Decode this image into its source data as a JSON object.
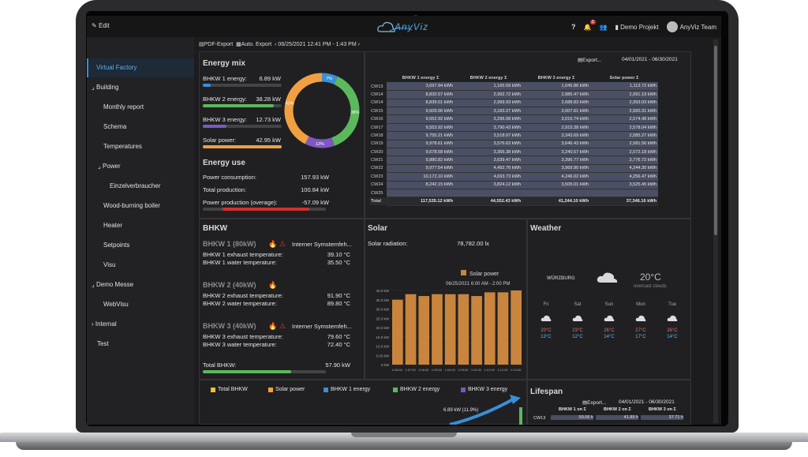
{
  "topbar": {
    "edit_label": "Edit",
    "logo": "AnyViz",
    "help": "?",
    "notif_count": "2",
    "project": "Demo Projekt",
    "user": "AnyViz Team"
  },
  "sidebar": {
    "items": [
      {
        "label": "Virtual Factory",
        "active": true
      },
      {
        "label": "Building"
      },
      {
        "label": "Monthly report"
      },
      {
        "label": "Schema"
      },
      {
        "label": "Temperatures"
      },
      {
        "label": "Power"
      },
      {
        "label": "Einzelverbraucher"
      },
      {
        "label": "Wood-burning boiler"
      },
      {
        "label": "Heater"
      },
      {
        "label": "Setpoints"
      },
      {
        "label": "Visu"
      },
      {
        "label": "Demo Messe"
      },
      {
        "label": "WebVisu"
      },
      {
        "label": "Internal"
      },
      {
        "label": "Test"
      }
    ]
  },
  "toolbar": {
    "pdf": "PDF-Export",
    "auto": "Auto. Export",
    "range": "06/25/2021 12:41 PM - 1:43 PM"
  },
  "energy_mix": {
    "title": "Energy mix",
    "items": [
      {
        "label": "BHKW 1 energy:",
        "value": "6.89 kW",
        "color": "#3a8fd8",
        "fill": 0.1
      },
      {
        "label": "BHKW 2 energy:",
        "value": "38.28 kW",
        "color": "#5cb85c",
        "fill": 0.9
      },
      {
        "label": "BHKW 3 energy:",
        "value": "12.73 kW",
        "color": "#7e57c2",
        "fill": 0.3
      },
      {
        "label": "Solar power:",
        "value": "42.95 kW",
        "color": "#f0a040",
        "fill": 1.0
      }
    ],
    "donut": [
      {
        "label": "7%",
        "value": 7,
        "color": "#3a8fd8"
      },
      {
        "label": "38%",
        "value": 38,
        "color": "#5cb85c"
      },
      {
        "label": "13%",
        "value": 13,
        "color": "#7e57c2"
      },
      {
        "label": "43%",
        "value": 43,
        "color": "#f0a040"
      }
    ]
  },
  "energy_use": {
    "title": "Energy use",
    "rows": [
      {
        "label": "Power consumption:",
        "value": "157.93 kW"
      },
      {
        "label": "Total production:",
        "value": "100.84 kW"
      },
      {
        "label": "Power production (overage):",
        "value": "-57.09 kW"
      }
    ]
  },
  "energy_table": {
    "export": "Export...",
    "range": "04/01/2021 - 06/30/2021",
    "headers": [
      "",
      "BHKW 1 energy Σ",
      "BHKW 2 energy Σ",
      "BHKW 3 energy Σ",
      "Solar power Σ"
    ],
    "rows": [
      [
        "CW13",
        "3,697.94 kWh",
        "1,165.59 kWh",
        "1,045.86 kWh",
        "1,113.72 kWh"
      ],
      [
        "CW14",
        "8,830.57 kWh",
        "2,992.72 kWh",
        "2,986.47 kWh",
        "2,991.19 kWh"
      ],
      [
        "CW14",
        "8,839.01 kWh",
        "2,999.93 kWh",
        "2,688.83 kWh",
        "2,993.03 kWh"
      ],
      [
        "CW15",
        "9,509.06 kWh",
        "3,183.27 kWh",
        "3,007.61 kWh",
        "2,560.31 kWh"
      ],
      [
        "CW16",
        "9,552.92 kWh",
        "3,296.08 kWh",
        "3,015.74 kWh",
        "2,574.48 kWh"
      ],
      [
        "CW17",
        "9,553.92 kWh",
        "3,790.43 kWh",
        "2,915.38 kWh",
        "2,578.04 kWh"
      ],
      [
        "CW18",
        "9,755.21 kWh",
        "3,518.07 kWh",
        "3,343.69 kWh",
        "2,585.27 kWh"
      ],
      [
        "CW19",
        "9,978.61 kWh",
        "3,576.63 kWh",
        "3,646.43 kWh",
        "2,581.56 kWh"
      ],
      [
        "CW20",
        "9,678.58 kWh",
        "3,355.38 kWh",
        "3,240.57 kWh",
        "2,572.18 kWh"
      ],
      [
        "CW21",
        "9,880.82 kWh",
        "3,639.47 kWh",
        "3,396.77 kWh",
        "3,776.72 kWh"
      ],
      [
        "CW22",
        "9,977.54 kWh",
        "4,492.76 kWh",
        "3,969.90 kWh",
        "4,244.30 kWh"
      ],
      [
        "CW23",
        "10,172.10 kWh",
        "4,693.73 kWh",
        "4,246.02 kWh",
        "4,256.47 kWh"
      ],
      [
        "CW24",
        "8,242.15 kWh",
        "3,824.12 kWh",
        "3,505.01 kWh",
        "3,525.45 kWh"
      ],
      [
        "CW25",
        "",
        "",
        "",
        ""
      ],
      [
        "Total",
        "117,535.12 kWh",
        "44,552.43 kWh",
        "41,244.10 kWh",
        "37,346.16 kWh"
      ]
    ]
  },
  "bhkw": {
    "title": "BHKW",
    "units": [
      {
        "name": "BHKW 1 (80kW)",
        "error": "Interner Symstemfeh...",
        "rows": [
          {
            "label": "BHKW 1 exhaust temperature:",
            "value": "39.10 °C"
          },
          {
            "label": "BHKW 1 water temperature:",
            "value": "35.50 °C"
          }
        ]
      },
      {
        "name": "BHKW 2 (40kW)",
        "error": "",
        "rows": [
          {
            "label": "BHKW 2 exhaust temperature:",
            "value": "91.90 °C"
          },
          {
            "label": "BHKW 2 water temperature:",
            "value": "89.80 °C"
          }
        ]
      },
      {
        "name": "BHKW 3 (40kW)",
        "error": "Interner Symstemfeh...",
        "rows": [
          {
            "label": "BHKW 3 exhaust temperature:",
            "value": "79.60 °C"
          },
          {
            "label": "BHKW 3 water temperature:",
            "value": "72.40 °C"
          }
        ]
      }
    ],
    "total_label": "Total BHKW:",
    "total_value": "57.90 kW"
  },
  "solar": {
    "title": "Solar",
    "radiation_label": "Solar radiation:",
    "radiation_value": "78,782.00 lx"
  },
  "chart_data": {
    "type": "bar",
    "title": "06/25/2021 6:00 AM - 2:00 PM",
    "series": [
      {
        "name": "Solar power",
        "values": [
          35,
          38,
          37,
          38,
          38,
          38,
          37,
          39,
          39,
          40
        ]
      }
    ],
    "categories": [
      "1:08:00",
      "1:07:00",
      "1:06:00",
      "1:05:00",
      "1:04:00",
      "1:03:00",
      "1:02:00",
      "1:01:00",
      "1:12:00",
      "1:13:00"
    ],
    "ylim": [
      0,
      40
    ],
    "yticks": [
      "0 kW",
      "5.00 kW",
      "10.0 kW",
      "15.0 kW",
      "20.0 kW",
      "25.0 kW",
      "30.0 kW",
      "35.0 kW",
      "40.0 kW"
    ],
    "color": "#c9853d"
  },
  "weather": {
    "title": "Weather",
    "city": "WÜRZBURG",
    "temp": "20°C",
    "desc": "overcast clouds",
    "days": [
      {
        "day": "Fri",
        "hi": "20°C",
        "lo": "13°C"
      },
      {
        "day": "Sat",
        "hi": "23°C",
        "lo": "12°C"
      },
      {
        "day": "Sun",
        "hi": "26°C",
        "lo": "14°C"
      },
      {
        "day": "Mon",
        "hi": "27°C",
        "lo": "17°C"
      },
      {
        "day": "Tue",
        "hi": "26°C",
        "lo": "14°C"
      }
    ]
  },
  "legend": [
    {
      "label": "Total BHKW",
      "color": "#f0c030"
    },
    {
      "label": "Solar power",
      "color": "#f0a040"
    },
    {
      "label": "BHKW 1 energy",
      "color": "#3a8fd8"
    },
    {
      "label": "BHKW 2 energy",
      "color": "#5cb85c"
    },
    {
      "label": "BHKW 3 energy",
      "color": "#7e57c2"
    }
  ],
  "flow_label": "6.89 kW (11.9%)",
  "lifespan": {
    "title": "Lifespan",
    "export": "Export...",
    "range": "04/01/2021 - 06/30/2021",
    "headers": [
      "",
      "BHKW 1 on Σ",
      "BHKW 2 on Σ",
      "BHKW 3 on Σ"
    ],
    "rows": [
      [
        "CW13",
        "59.06 h",
        "41.89 h",
        "37.71 h"
      ]
    ]
  }
}
